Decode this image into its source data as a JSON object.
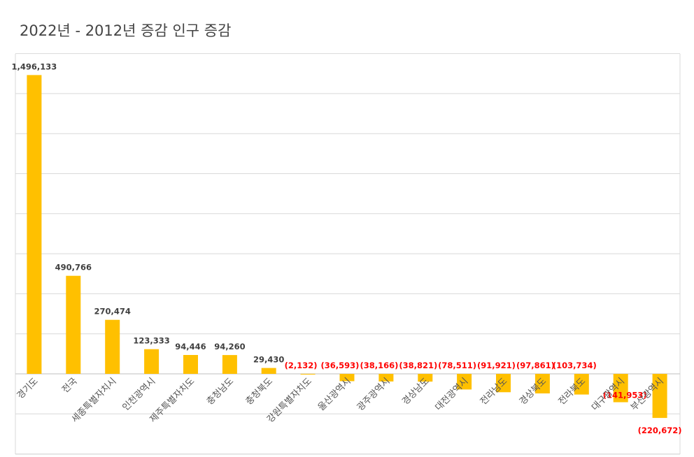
{
  "chart_data": {
    "type": "bar",
    "title": "2022년 - 2012년 증감 인구 증감",
    "categories": [
      "경기도",
      "전국",
      "세종특별자치시",
      "인천광역시",
      "제주특별자치도",
      "충청남도",
      "충청북도",
      "강원특별자치도",
      "울산광역시",
      "광주광역시",
      "경상남도",
      "대전광역시",
      "전라남도",
      "경상북도",
      "전라북도",
      "대구광역시",
      "부산광역시"
    ],
    "values": [
      1496133,
      490766,
      270474,
      123333,
      94446,
      94260,
      29430,
      -2132,
      -36593,
      -38166,
      -38821,
      -78511,
      -91921,
      -97861,
      -103734,
      -141953,
      -220672
    ],
    "data_labels": [
      "1,496,133",
      "490,766",
      "270,474",
      "123,333",
      "94,446",
      "94,260",
      "29,430",
      "(2,132)",
      "(36,593)",
      "(38,166)",
      "(38,821)",
      "(78,511)",
      "(91,921)",
      "(97,861)",
      "(103,734)",
      "(141,953)",
      "(220,672)"
    ],
    "ylim": [
      -400000,
      1600000
    ],
    "grid": true,
    "legend": "none",
    "colors": {
      "bar": "#FFC000",
      "positive_label": "#404040",
      "negative_label": "#FF0000",
      "grid": "#D9D9D9"
    }
  }
}
